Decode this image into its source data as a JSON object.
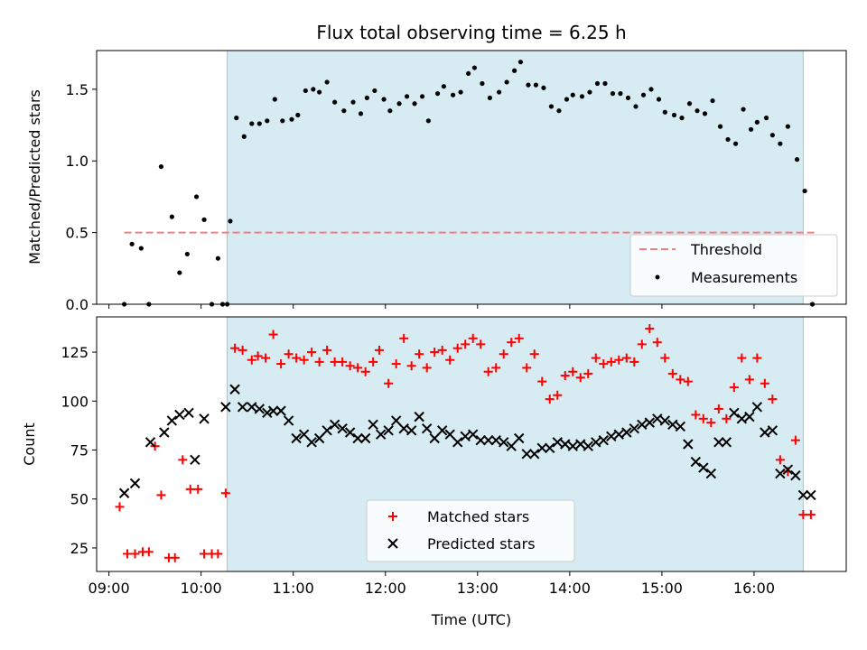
{
  "chart_data": [
    {
      "type": "scatter",
      "title": "Flux total observing time = 6.25 h",
      "xlabel": "",
      "ylabel": "Matched/Predicted stars",
      "ylim": [
        0,
        1.77
      ],
      "yticks": [
        "0.0",
        "0.5",
        "1.0",
        "1.5"
      ],
      "ytick_values": [
        0,
        0.5,
        1.0,
        1.5
      ],
      "observing_window": [
        "10:17",
        "16:32"
      ],
      "legend_position": "lower right",
      "threshold": {
        "name": "Threshold",
        "value": 0.5,
        "x_range": [
          "09:10",
          "16:40"
        ],
        "color": "#f08080"
      },
      "series": [
        {
          "name": "Measurements",
          "color": "#000000",
          "x": [
            "09:10",
            "09:15",
            "09:21",
            "09:26",
            "09:34",
            "09:41",
            "09:46",
            "09:51",
            "09:57",
            "10:02",
            "10:07",
            "10:11",
            "10:14",
            "10:17",
            "10:19",
            "10:23",
            "10:28",
            "10:33",
            "10:38",
            "10:43",
            "10:48",
            "10:53",
            "10:59",
            "11:03",
            "11:08",
            "11:13",
            "11:17",
            "11:22",
            "11:27",
            "11:33",
            "11:39",
            "11:44",
            "11:48",
            "11:53",
            "11:59",
            "12:03",
            "12:09",
            "12:14",
            "12:19",
            "12:24",
            "12:28",
            "12:34",
            "12:38",
            "12:44",
            "12:49",
            "12:54",
            "12:58",
            "13:03",
            "13:08",
            "13:14",
            "13:19",
            "13:24",
            "13:28",
            "13:33",
            "13:38",
            "13:43",
            "13:48",
            "13:53",
            "13:58",
            "14:02",
            "14:08",
            "14:13",
            "14:18",
            "14:23",
            "14:28",
            "14:33",
            "14:38",
            "14:43",
            "14:48",
            "14:53",
            "14:58",
            "15:02",
            "15:08",
            "15:13",
            "15:18",
            "15:23",
            "15:28",
            "15:33",
            "15:38",
            "15:43",
            "15:48",
            "15:53",
            "15:58",
            "16:02",
            "16:08",
            "16:12",
            "16:17",
            "16:22",
            "16:28",
            "16:33",
            "16:38"
          ],
          "y": [
            0.0,
            0.42,
            0.39,
            0.0,
            0.96,
            0.61,
            0.22,
            0.35,
            0.75,
            0.59,
            0.0,
            0.32,
            0.0,
            0.0,
            0.58,
            1.3,
            1.17,
            1.26,
            1.26,
            1.28,
            1.43,
            1.28,
            1.29,
            1.32,
            1.49,
            1.5,
            1.48,
            1.55,
            1.41,
            1.35,
            1.41,
            1.33,
            1.44,
            1.49,
            1.43,
            1.35,
            1.4,
            1.45,
            1.4,
            1.45,
            1.28,
            1.47,
            1.52,
            1.46,
            1.48,
            1.61,
            1.65,
            1.54,
            1.44,
            1.48,
            1.55,
            1.63,
            1.69,
            1.53,
            1.53,
            1.51,
            1.38,
            1.35,
            1.43,
            1.46,
            1.45,
            1.48,
            1.54,
            1.54,
            1.47,
            1.47,
            1.44,
            1.38,
            1.46,
            1.5,
            1.43,
            1.34,
            1.32,
            1.3,
            1.4,
            1.35,
            1.33,
            1.42,
            1.24,
            1.15,
            1.12,
            1.36,
            1.22,
            1.27,
            1.3,
            1.18,
            1.12,
            1.24,
            1.01,
            0.79,
            0.0
          ]
        }
      ]
    },
    {
      "type": "scatter",
      "title": "",
      "xlabel": "Time (UTC)",
      "ylabel": "Count",
      "ylim": [
        13,
        143
      ],
      "yticks": [
        "25",
        "50",
        "75",
        "100",
        "125"
      ],
      "ytick_values": [
        25,
        50,
        75,
        100,
        125
      ],
      "xlim": [
        "08:52",
        "17:00"
      ],
      "xticks": [
        "09:00",
        "10:00",
        "11:00",
        "12:00",
        "13:00",
        "14:00",
        "15:00",
        "16:00"
      ],
      "observing_window": [
        "10:17",
        "16:32"
      ],
      "legend_position": "lower center",
      "series": [
        {
          "name": "Matched stars",
          "marker": "plus",
          "color": "#ff0000",
          "x": [
            "09:07",
            "09:12",
            "09:17",
            "09:22",
            "09:26",
            "09:30",
            "09:34",
            "09:39",
            "09:43",
            "09:48",
            "09:53",
            "09:58",
            "10:02",
            "10:07",
            "10:11",
            "10:16",
            "10:22",
            "10:27",
            "10:33",
            "10:37",
            "10:42",
            "10:47",
            "10:52",
            "10:57",
            "11:02",
            "11:07",
            "11:12",
            "11:17",
            "11:22",
            "11:27",
            "11:32",
            "11:37",
            "11:42",
            "11:47",
            "11:52",
            "11:56",
            "12:02",
            "12:07",
            "12:12",
            "12:17",
            "12:22",
            "12:27",
            "12:32",
            "12:37",
            "12:42",
            "12:47",
            "12:52",
            "12:57",
            "13:02",
            "13:07",
            "13:12",
            "13:17",
            "13:22",
            "13:27",
            "13:32",
            "13:37",
            "13:42",
            "13:47",
            "13:52",
            "13:57",
            "14:02",
            "14:07",
            "14:12",
            "14:17",
            "14:22",
            "14:27",
            "14:32",
            "14:37",
            "14:42",
            "14:47",
            "14:52",
            "14:57",
            "15:02",
            "15:07",
            "15:12",
            "15:17",
            "15:22",
            "15:27",
            "15:32",
            "15:37",
            "15:42",
            "15:47",
            "15:52",
            "15:57",
            "16:02",
            "16:07",
            "16:12",
            "16:17",
            "16:22",
            "16:27",
            "16:32",
            "16:37"
          ],
          "y": [
            46,
            22,
            22,
            23,
            23,
            77,
            52,
            20,
            20,
            70,
            55,
            55,
            22,
            22,
            22,
            53,
            127,
            126,
            121,
            123,
            122,
            134,
            119,
            124,
            122,
            121,
            125,
            120,
            126,
            120,
            120,
            118,
            117,
            115,
            120,
            126,
            109,
            119,
            132,
            118,
            124,
            117,
            125,
            126,
            121,
            127,
            129,
            132,
            129,
            115,
            117,
            124,
            130,
            132,
            117,
            124,
            110,
            101,
            103,
            113,
            115,
            112,
            114,
            122,
            119,
            120,
            121,
            122,
            120,
            129,
            137,
            130,
            122,
            114,
            111,
            110,
            93,
            91,
            89,
            96,
            91,
            107,
            122,
            111,
            122,
            109,
            101,
            70,
            64,
            80,
            42,
            42
          ]
        },
        {
          "name": "Predicted stars",
          "marker": "x",
          "color": "#000000",
          "x": [
            "09:10",
            "09:17",
            "09:27",
            "09:36",
            "09:41",
            "09:46",
            "09:52",
            "09:56",
            "10:02",
            "10:16",
            "10:22",
            "10:27",
            "10:33",
            "10:38",
            "10:43",
            "10:47",
            "10:52",
            "10:57",
            "11:02",
            "11:07",
            "11:12",
            "11:17",
            "11:22",
            "11:27",
            "11:32",
            "11:37",
            "11:42",
            "11:47",
            "11:52",
            "11:57",
            "12:02",
            "12:07",
            "12:12",
            "12:17",
            "12:22",
            "12:27",
            "12:32",
            "12:37",
            "12:42",
            "12:47",
            "12:52",
            "12:57",
            "13:02",
            "13:07",
            "13:12",
            "13:17",
            "13:22",
            "13:27",
            "13:32",
            "13:37",
            "13:42",
            "13:47",
            "13:52",
            "13:57",
            "14:02",
            "14:07",
            "14:12",
            "14:17",
            "14:22",
            "14:27",
            "14:32",
            "14:37",
            "14:42",
            "14:47",
            "14:52",
            "14:57",
            "15:02",
            "15:07",
            "15:12",
            "15:17",
            "15:22",
            "15:27",
            "15:32",
            "15:37",
            "15:42",
            "15:47",
            "15:52",
            "15:57",
            "16:02",
            "16:07",
            "16:12",
            "16:17",
            "16:22",
            "16:27",
            "16:32",
            "16:37"
          ],
          "y": [
            53,
            58,
            79,
            84,
            90,
            93,
            94,
            70,
            91,
            97,
            106,
            97,
            97,
            96,
            94,
            95,
            95,
            90,
            81,
            83,
            79,
            81,
            85,
            88,
            86,
            84,
            81,
            81,
            88,
            83,
            85,
            90,
            86,
            85,
            92,
            86,
            81,
            85,
            83,
            79,
            82,
            83,
            80,
            80,
            80,
            79,
            77,
            81,
            73,
            73,
            76,
            76,
            79,
            78,
            77,
            78,
            77,
            79,
            80,
            82,
            83,
            84,
            86,
            88,
            89,
            91,
            90,
            88,
            87,
            78,
            69,
            66,
            63,
            79,
            79,
            94,
            91,
            92,
            97,
            84,
            85,
            63,
            65,
            62,
            52,
            52
          ]
        }
      ]
    }
  ]
}
